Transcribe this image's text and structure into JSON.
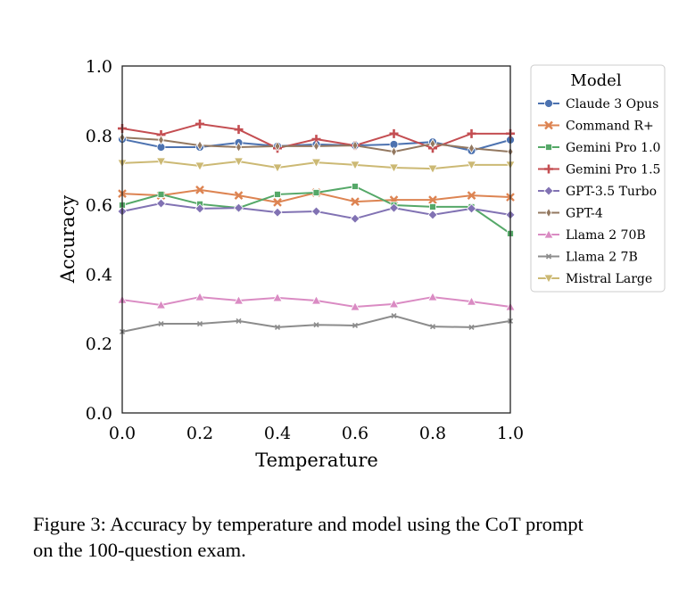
{
  "chart_data": {
    "type": "line",
    "title": "",
    "xlabel": "Temperature",
    "ylabel": "Accuracy",
    "xlim": [
      0.0,
      1.0
    ],
    "ylim": [
      0.0,
      1.0
    ],
    "xticks": [
      "0.0",
      "0.2",
      "0.4",
      "0.6",
      "0.8",
      "1.0"
    ],
    "yticks": [
      "0.0",
      "0.2",
      "0.4",
      "0.6",
      "0.8",
      "1.0"
    ],
    "grid": false,
    "legend": {
      "title": "Model",
      "placement": "outside-right-top"
    },
    "x": [
      0.0,
      0.1,
      0.2,
      0.3,
      0.4,
      0.5,
      0.6,
      0.7,
      0.8,
      0.9,
      1.0
    ],
    "series": [
      {
        "name": "Claude 3 Opus",
        "color": "#4C72B0",
        "marker": "circle",
        "values": [
          0.789,
          0.766,
          0.766,
          0.779,
          0.769,
          0.774,
          0.771,
          0.774,
          0.781,
          0.756,
          0.787
        ]
      },
      {
        "name": "Command R+",
        "color": "#DD8452",
        "marker": "x-thick",
        "values": [
          0.632,
          0.627,
          0.643,
          0.627,
          0.607,
          0.635,
          0.609,
          0.614,
          0.614,
          0.627,
          0.622
        ]
      },
      {
        "name": "Gemini Pro 1.0",
        "color": "#55A868",
        "marker": "square",
        "values": [
          0.599,
          0.63,
          0.602,
          0.591,
          0.63,
          0.635,
          0.653,
          0.599,
          0.594,
          0.594,
          0.517
        ]
      },
      {
        "name": "Gemini Pro 1.5",
        "color": "#C44E52",
        "marker": "plus",
        "values": [
          0.82,
          0.802,
          0.833,
          0.817,
          0.763,
          0.789,
          0.771,
          0.805,
          0.763,
          0.805,
          0.805
        ]
      },
      {
        "name": "GPT-3.5 Turbo",
        "color": "#8172B3",
        "marker": "diamond",
        "values": [
          0.581,
          0.604,
          0.589,
          0.591,
          0.578,
          0.581,
          0.56,
          0.591,
          0.571,
          0.589,
          0.571
        ]
      },
      {
        "name": "GPT-4",
        "color": "#937860",
        "marker": "thin-diamond",
        "values": [
          0.794,
          0.787,
          0.771,
          0.766,
          0.769,
          0.769,
          0.771,
          0.753,
          0.776,
          0.763,
          0.753
        ]
      },
      {
        "name": "Llama 2 70B",
        "color": "#DA8BC3",
        "marker": "triangle-up",
        "values": [
          0.326,
          0.311,
          0.334,
          0.324,
          0.332,
          0.324,
          0.306,
          0.314,
          0.334,
          0.321,
          0.306
        ]
      },
      {
        "name": "Llama 2 7B",
        "color": "#8C8C8C",
        "marker": "x-small",
        "values": [
          0.234,
          0.257,
          0.257,
          0.265,
          0.247,
          0.254,
          0.252,
          0.28,
          0.249,
          0.247,
          0.265
        ]
      },
      {
        "name": "Mistral Large",
        "color": "#CCB974",
        "marker": "triangle-down",
        "values": [
          0.72,
          0.725,
          0.712,
          0.725,
          0.707,
          0.722,
          0.715,
          0.707,
          0.704,
          0.715,
          0.715
        ]
      }
    ]
  },
  "caption": "Figure 3: Accuracy by temperature and model using the CoT prompt on the 100-question exam."
}
